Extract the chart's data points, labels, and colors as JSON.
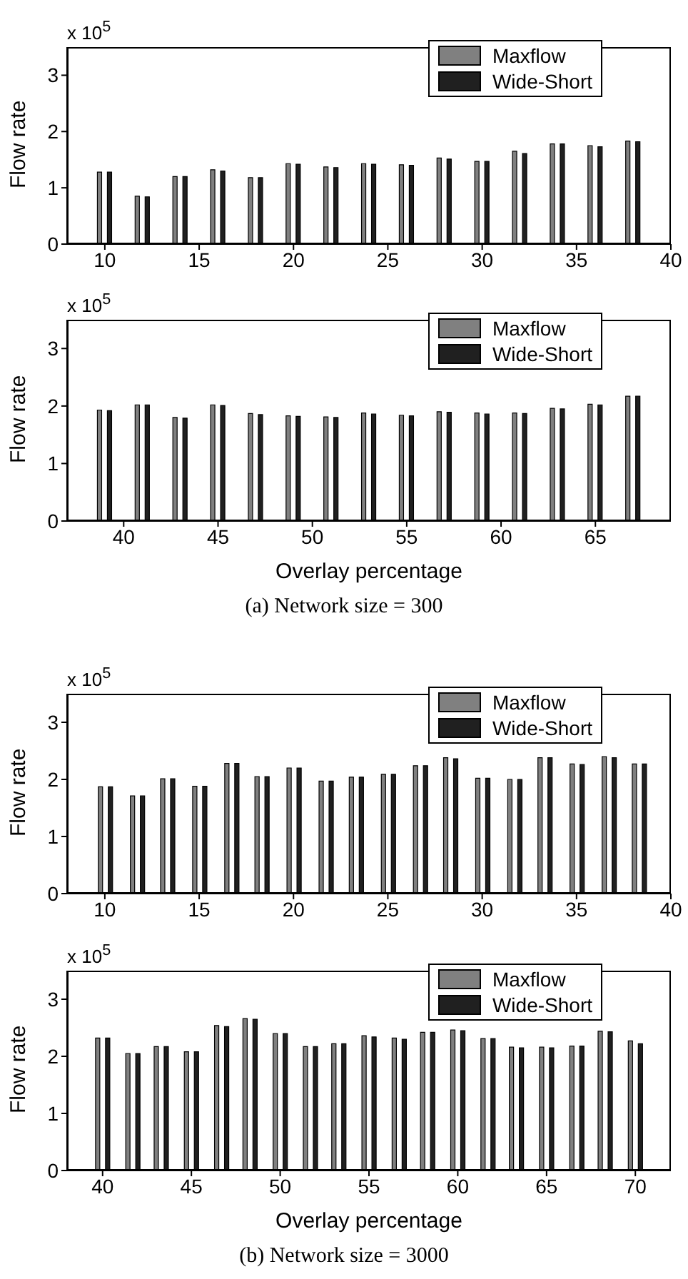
{
  "chart_data": [
    {
      "type": "bar",
      "ylabel": "Flow rate",
      "annotations": [
        "x 10$^{5}$"
      ],
      "x": [
        10,
        12,
        14,
        16,
        18,
        20,
        22,
        24,
        26,
        28,
        30,
        32,
        34,
        36,
        38
      ],
      "xlim": [
        8,
        40
      ],
      "xticks": [
        10,
        15,
        20,
        25,
        30,
        35,
        40
      ],
      "ylim": [
        0,
        3.5
      ],
      "yticks": [
        0,
        1,
        2,
        3
      ],
      "legend": "top right",
      "series": [
        {
          "name": "Maxflow",
          "color": "#808080",
          "values": [
            1.28,
            0.85,
            1.2,
            1.32,
            1.18,
            1.43,
            1.37,
            1.43,
            1.41,
            1.53,
            1.47,
            1.65,
            1.78,
            1.75,
            1.83
          ]
        },
        {
          "name": "Wide-Short",
          "color": "#202020",
          "values": [
            1.28,
            0.84,
            1.2,
            1.3,
            1.18,
            1.42,
            1.36,
            1.42,
            1.4,
            1.51,
            1.47,
            1.61,
            1.78,
            1.73,
            1.82
          ]
        }
      ]
    },
    {
      "type": "bar",
      "ylabel": "Flow rate",
      "xlabel": "Overlay percentage",
      "annotations": [
        "x 10$^{5}$",
        "(a) Network size = 300"
      ],
      "x": [
        39,
        41,
        43,
        45,
        47,
        49,
        51,
        53,
        55,
        57,
        59,
        61,
        63,
        65,
        67
      ],
      "xlim": [
        37,
        69
      ],
      "xticks": [
        40,
        45,
        50,
        55,
        60,
        65
      ],
      "ylim": [
        0,
        3.5
      ],
      "yticks": [
        0,
        1,
        2,
        3
      ],
      "legend": "top right",
      "series": [
        {
          "name": "Maxflow",
          "color": "#808080",
          "values": [
            1.93,
            2.02,
            1.8,
            2.02,
            1.87,
            1.83,
            1.81,
            1.88,
            1.84,
            1.9,
            1.88,
            1.88,
            1.96,
            2.03,
            2.17
          ]
        },
        {
          "name": "Wide-Short",
          "color": "#202020",
          "values": [
            1.92,
            2.02,
            1.79,
            2.01,
            1.85,
            1.82,
            1.8,
            1.86,
            1.83,
            1.89,
            1.86,
            1.87,
            1.95,
            2.02,
            2.17
          ]
        }
      ]
    },
    {
      "type": "bar",
      "ylabel": "Flow rate",
      "annotations": [
        "x 10$^{5}$"
      ],
      "x": [
        10,
        11.7,
        13.3,
        15,
        16.7,
        18.3,
        20,
        21.7,
        23.3,
        25,
        26.7,
        28.3,
        30,
        31.7,
        33.3,
        35,
        36.7,
        38.3
      ],
      "xlim": [
        8,
        40
      ],
      "xticks": [
        10,
        15,
        20,
        25,
        30,
        35,
        40
      ],
      "ylim": [
        0,
        3.5
      ],
      "yticks": [
        0,
        1,
        2,
        3
      ],
      "legend": "top right",
      "series": [
        {
          "name": "Maxflow",
          "color": "#808080",
          "values": [
            1.87,
            1.71,
            2.01,
            1.88,
            2.28,
            2.05,
            2.2,
            1.97,
            2.04,
            2.09,
            2.24,
            2.38,
            2.02,
            2.0,
            2.38,
            2.27,
            2.4,
            2.27
          ]
        },
        {
          "name": "Wide-Short",
          "color": "#202020",
          "values": [
            1.87,
            1.71,
            2.01,
            1.88,
            2.28,
            2.05,
            2.2,
            1.97,
            2.04,
            2.09,
            2.24,
            2.36,
            2.02,
            2.0,
            2.38,
            2.26,
            2.38,
            2.27
          ]
        }
      ]
    },
    {
      "type": "bar",
      "ylabel": "Flow rate",
      "xlabel": "Overlay percentage",
      "annotations": [
        "x 10$^{5}$",
        "(b) Network size = 3000"
      ],
      "x": [
        40,
        41.7,
        43.3,
        45,
        46.7,
        48.3,
        50,
        51.7,
        53.3,
        55,
        56.7,
        58.3,
        60,
        61.7,
        63.3,
        65,
        66.7,
        68.3,
        70
      ],
      "xlim": [
        38,
        72
      ],
      "xticks": [
        40,
        45,
        50,
        55,
        60,
        65,
        70
      ],
      "ylim": [
        0,
        3.5
      ],
      "yticks": [
        0,
        1,
        2,
        3
      ],
      "legend": "top right",
      "series": [
        {
          "name": "Maxflow",
          "color": "#808080",
          "values": [
            2.32,
            2.05,
            2.17,
            2.08,
            2.54,
            2.66,
            2.4,
            2.17,
            2.22,
            2.36,
            2.32,
            2.42,
            2.46,
            2.31,
            2.16,
            2.16,
            2.18,
            2.44,
            2.27
          ]
        },
        {
          "name": "Wide-Short",
          "color": "#202020",
          "values": [
            2.32,
            2.05,
            2.17,
            2.08,
            2.52,
            2.65,
            2.4,
            2.17,
            2.22,
            2.34,
            2.3,
            2.42,
            2.45,
            2.31,
            2.15,
            2.15,
            2.18,
            2.43,
            2.22
          ]
        }
      ]
    }
  ]
}
